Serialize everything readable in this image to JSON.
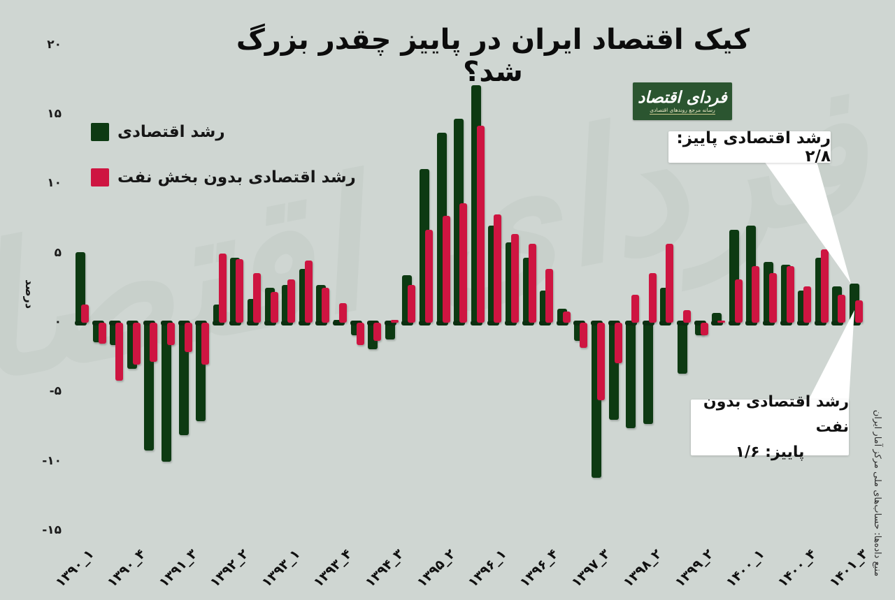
{
  "title": "کیک اقتصاد ایران در پاییز چقدر بزرگ شد؟",
  "legend": {
    "gdp_label": "رشد اقتصادی",
    "non_oil_label": "رشد اقتصادی بدون بخش نفت"
  },
  "logo": {
    "name": "فردای اقتصاد",
    "tagline": "رسانه مرجع روندهای اقتصادی"
  },
  "watermark": "فردای اقتصاد",
  "annotations": {
    "gdp_autumn": "رشد اقتصادی پاییز: ۲/۸",
    "non_oil_line1": "رشد اقتصادی بدون نفت",
    "non_oil_line2": "پاییز: ۱/۶"
  },
  "source": "منبع داده‌ها: حساب‌های ملی مرکز آمار ایران",
  "colors": {
    "background": "#cfd6d2",
    "gdp_bar": "#0d3a12",
    "non_oil_bar": "#ce1541",
    "zero_cap": "#0b2f10",
    "logo_green": "#2b5530",
    "callout": "#ffffff"
  },
  "chart_data": {
    "type": "bar",
    "ylabel": "درصد",
    "ylim": [
      -15,
      20
    ],
    "grid": false,
    "legend_position": "top-left",
    "num_quarters": 46,
    "yticks": [
      {
        "value": 20,
        "label": "۲۰"
      },
      {
        "value": 15,
        "label": "۱۵"
      },
      {
        "value": 10,
        "label": "۱۰"
      },
      {
        "value": 5,
        "label": "۵"
      },
      {
        "value": 0,
        "label": "۰"
      },
      {
        "value": -5,
        "label": "-۵"
      },
      {
        "value": -10,
        "label": "-۱۰"
      },
      {
        "value": -15,
        "label": "-۱۵"
      }
    ],
    "x_ticks": [
      {
        "index": 0,
        "label": "۱۳۹۰_۱"
      },
      {
        "index": 3,
        "label": "۱۳۹۰_۴"
      },
      {
        "index": 6,
        "label": "۱۳۹۱_۳"
      },
      {
        "index": 9,
        "label": "۱۳۹۲_۲"
      },
      {
        "index": 12,
        "label": "۱۳۹۳_۱"
      },
      {
        "index": 15,
        "label": "۱۳۹۳_۴"
      },
      {
        "index": 18,
        "label": "۱۳۹۴_۳"
      },
      {
        "index": 21,
        "label": "۱۳۹۵_۲"
      },
      {
        "index": 24,
        "label": "۱۳۹۶_۱"
      },
      {
        "index": 27,
        "label": "۱۳۹۶_۴"
      },
      {
        "index": 30,
        "label": "۱۳۹۷_۳"
      },
      {
        "index": 33,
        "label": "۱۳۹۸_۲"
      },
      {
        "index": 36,
        "label": "۱۳۹۹_۲"
      },
      {
        "index": 39,
        "label": "۱۴۰۰_۱"
      },
      {
        "index": 42,
        "label": "۱۴۰۰_۴"
      },
      {
        "index": 45,
        "label": "۱۴۰۱_۳"
      }
    ],
    "series": [
      {
        "name": "رشد اقتصادی",
        "color": "#0d3a12",
        "values": [
          5.1,
          -1.4,
          -1.6,
          -3.3,
          -9.2,
          -10.0,
          -8.1,
          -7.1,
          1.3,
          4.7,
          1.7,
          2.5,
          2.7,
          3.9,
          2.7,
          0.2,
          -0.9,
          -1.9,
          -1.2,
          3.4,
          11.1,
          13.7,
          14.7,
          17.1,
          7.0,
          5.8,
          4.7,
          2.3,
          1.0,
          -1.3,
          -11.2,
          -7.0,
          -7.6,
          -7.3,
          2.5,
          -3.7,
          -0.9,
          0.7,
          6.7,
          7.0,
          4.4,
          4.2,
          2.3,
          4.7,
          2.6,
          2.8
        ]
      },
      {
        "name": "رشد اقتصادی بدون بخش نفت",
        "color": "#ce1541",
        "values": [
          1.3,
          -1.5,
          -4.2,
          -3.0,
          -2.8,
          -1.6,
          -2.1,
          -3.0,
          5.0,
          4.6,
          3.6,
          2.2,
          3.1,
          4.5,
          2.5,
          1.4,
          -1.6,
          -1.3,
          0.2,
          2.7,
          6.7,
          7.7,
          8.6,
          14.2,
          7.8,
          6.4,
          5.7,
          3.9,
          0.8,
          -1.8,
          -5.6,
          -2.9,
          2.0,
          3.6,
          5.7,
          0.9,
          -0.9,
          0.1,
          3.1,
          4.1,
          3.6,
          4.1,
          2.6,
          5.3,
          2.0,
          1.6
        ]
      }
    ],
    "highlights": {
      "gdp_autumn": "۲/۸",
      "non_oil_autumn": "۱/۶"
    }
  }
}
